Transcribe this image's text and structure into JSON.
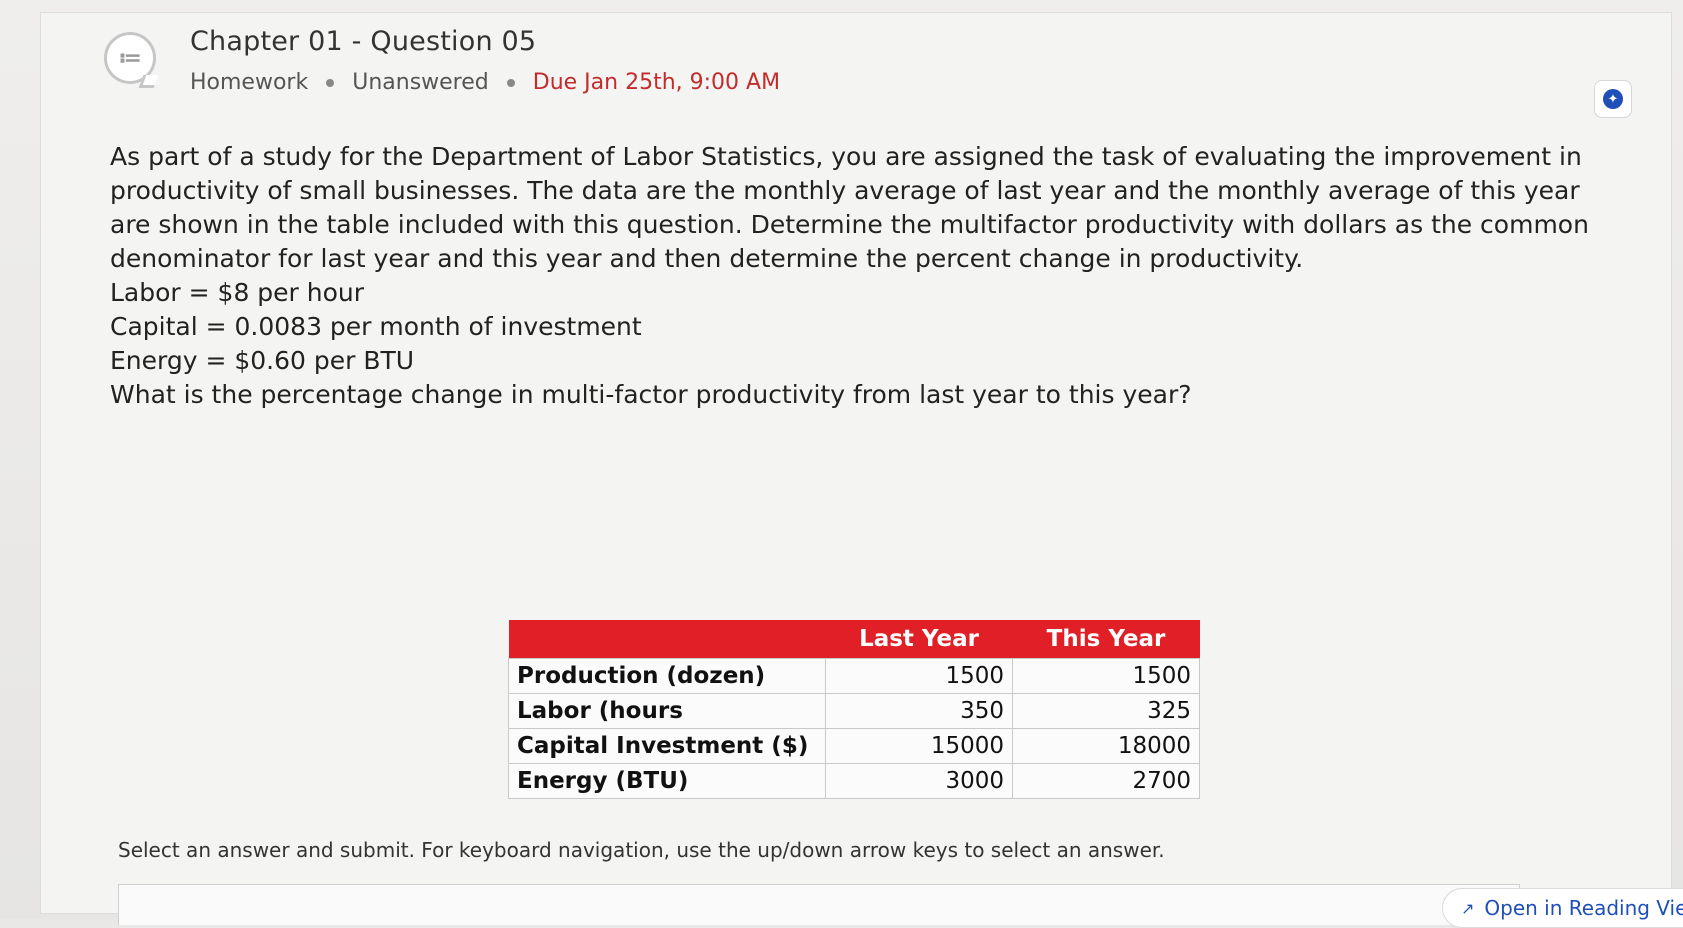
{
  "header": {
    "title": "Chapter 01 - Question 05",
    "type": "Homework",
    "status": "Unanswered",
    "due": "Due Jan 25th, 9:00 AM"
  },
  "question": {
    "paragraph": "As part of a study for the Department of Labor Statistics, you are assigned the task of evaluating the improvement in productivity of small businesses. The data are the monthly average of last year and the monthly average of this year are shown in the table included with this question.  Determine the multifactor productivity with dollars as the common denominator for last year and this year and then determine the percent change in productivity.",
    "rates": [
      "Labor = $8 per hour",
      "Capital = 0.0083 per month of investment",
      "Energy = $0.60 per BTU"
    ],
    "prompt": "What is the percentage change in multi-factor productivity from last year to this year?"
  },
  "table": {
    "headers": [
      "",
      "Last Year",
      "This Year"
    ],
    "rows": [
      {
        "label": "Production (dozen)",
        "last": "1500",
        "this": "1500"
      },
      {
        "label": "Labor (hours",
        "last": "350",
        "this": "325"
      },
      {
        "label": "Capital Investment ($)",
        "last": "15000",
        "this": "18000"
      },
      {
        "label": "Energy (BTU)",
        "last": "3000",
        "this": "2700"
      }
    ]
  },
  "footer": {
    "instruction": "Select an answer and submit. For keyboard navigation, use the up/down arrow keys to select an answer.",
    "reading_view": "Open in Reading Vie"
  },
  "colors": {
    "table_header": "#e11f26",
    "due_text": "#c32c2c",
    "accent": "#1f4fb8"
  },
  "icons": {
    "question_icon": "chat-list-icon",
    "bookmark_icon": "bookmark-icon",
    "reading_view_icon": "external-arrow-icon"
  }
}
